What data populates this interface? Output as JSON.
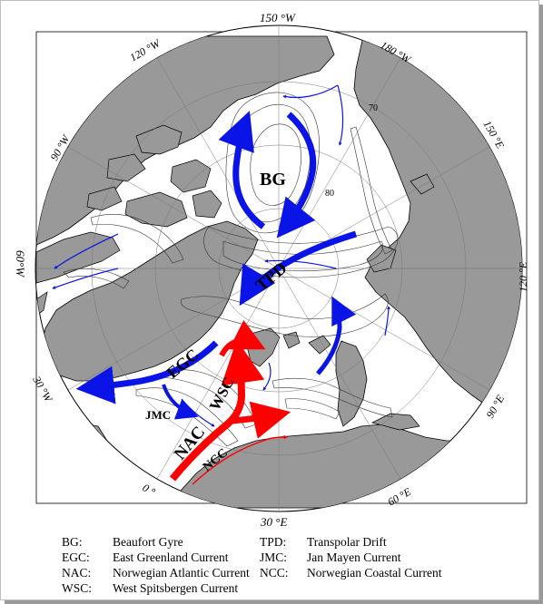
{
  "map": {
    "meridian_labels": {
      "top": "150 °W",
      "upper_left": "120 °W",
      "upper_right": "180 °W",
      "left_upper": "90 °W",
      "right_upper": "150 °E",
      "left": "60°W",
      "right": "120 °E",
      "left_lower": "30 °W",
      "right_lower": "90 °E",
      "bottom_left": "0 °",
      "bottom_right": "60 °E",
      "bottom": "30 °E"
    },
    "latitude_labels": [
      "70",
      "80"
    ],
    "current_labels": {
      "bg": "BG",
      "tpd": "TPD",
      "egc": "EGC",
      "wsc": "WSC",
      "jmc": "JMC",
      "nac": "NAC",
      "ncc": "NCC"
    },
    "colors": {
      "cold_current": "#0b14e6",
      "warm_current": "#ff0000",
      "land": "#999999",
      "ocean": "#ffffff"
    }
  },
  "legend": [
    {
      "abbr": "BG:",
      "name": "Beaufort Gyre"
    },
    {
      "abbr": "TPD:",
      "name": "Transpolar Drift"
    },
    {
      "abbr": "EGC:",
      "name": "East Greenland Current"
    },
    {
      "abbr": "JMC:",
      "name": "Jan Mayen Current"
    },
    {
      "abbr": "NAC:",
      "name": "Norwegian Atlantic Current"
    },
    {
      "abbr": "NCC:",
      "name": "Norwegian Coastal Current"
    },
    {
      "abbr": "WSC:",
      "name": "West Spitsbergen Current"
    }
  ]
}
